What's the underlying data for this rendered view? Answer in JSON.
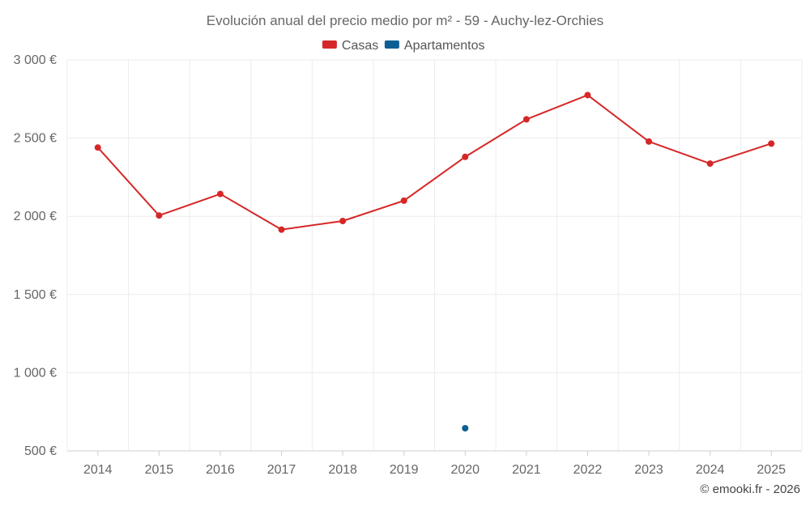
{
  "chart_data": {
    "type": "line",
    "title": "Evolución anual del precio medio por m² - 59 - Auchy-lez-Orchies",
    "categories": [
      "2014",
      "2015",
      "2016",
      "2017",
      "2018",
      "2019",
      "2020",
      "2021",
      "2022",
      "2023",
      "2024",
      "2025"
    ],
    "series": [
      {
        "name": "Casas",
        "color": "#d62728",
        "values": [
          2440,
          2005,
          2143,
          1915,
          1970,
          2100,
          2380,
          2620,
          2775,
          2478,
          2337,
          2465
        ]
      },
      {
        "name": "Apartamentos",
        "color": "#0b5f94",
        "values": [
          null,
          null,
          null,
          null,
          null,
          null,
          645,
          null,
          null,
          null,
          null,
          null
        ]
      }
    ],
    "ylim": [
      500,
      3000
    ],
    "yticks": [
      500,
      1000,
      1500,
      2000,
      2500,
      3000
    ],
    "ytick_labels": [
      "500 €",
      "1 000 €",
      "1 500 €",
      "2 000 €",
      "2 500 €",
      "3 000 €"
    ],
    "xlabel": "",
    "ylabel": "",
    "grid": true,
    "legend_position": "top-center"
  },
  "credit": "© emooki.fr - 2026"
}
